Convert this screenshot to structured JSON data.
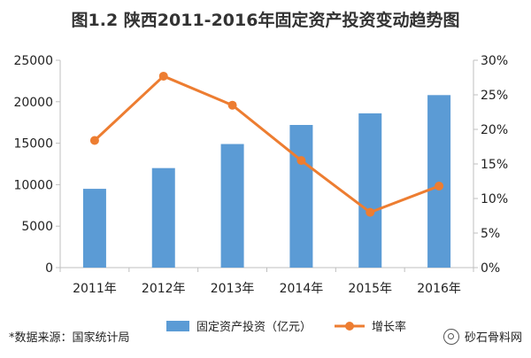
{
  "chart_data": {
    "title": "图1.2 陕西2011-2016年固定资产投资变动趋势图",
    "type": "bar",
    "categories": [
      "2011年",
      "2012年",
      "2013年",
      "2014年",
      "2015年",
      "2016年"
    ],
    "series": [
      {
        "name": "固定资产投资（亿元）",
        "type": "bar",
        "axis": "left",
        "values": [
          9500,
          12000,
          14900,
          17200,
          18600,
          20800
        ]
      },
      {
        "name": "增长率",
        "type": "line",
        "axis": "right",
        "values": [
          18.4,
          27.7,
          23.5,
          15.5,
          8.0,
          11.8
        ]
      }
    ],
    "y_left": {
      "min": 0,
      "max": 25000,
      "ticks": [
        "0",
        "5000",
        "10000",
        "15000",
        "20000",
        "25000"
      ]
    },
    "y_right": {
      "min": 0,
      "max": 30,
      "ticks": [
        "0%",
        "5%",
        "10%",
        "15%",
        "20%",
        "25%",
        "30%"
      ]
    },
    "grid": false,
    "legend": "bottom",
    "colors": {
      "bar": "#5B9BD5",
      "line": "#ED7D31"
    }
  },
  "source_note": "*数据来源：国家统计局",
  "brand_text": "砂石骨料网"
}
